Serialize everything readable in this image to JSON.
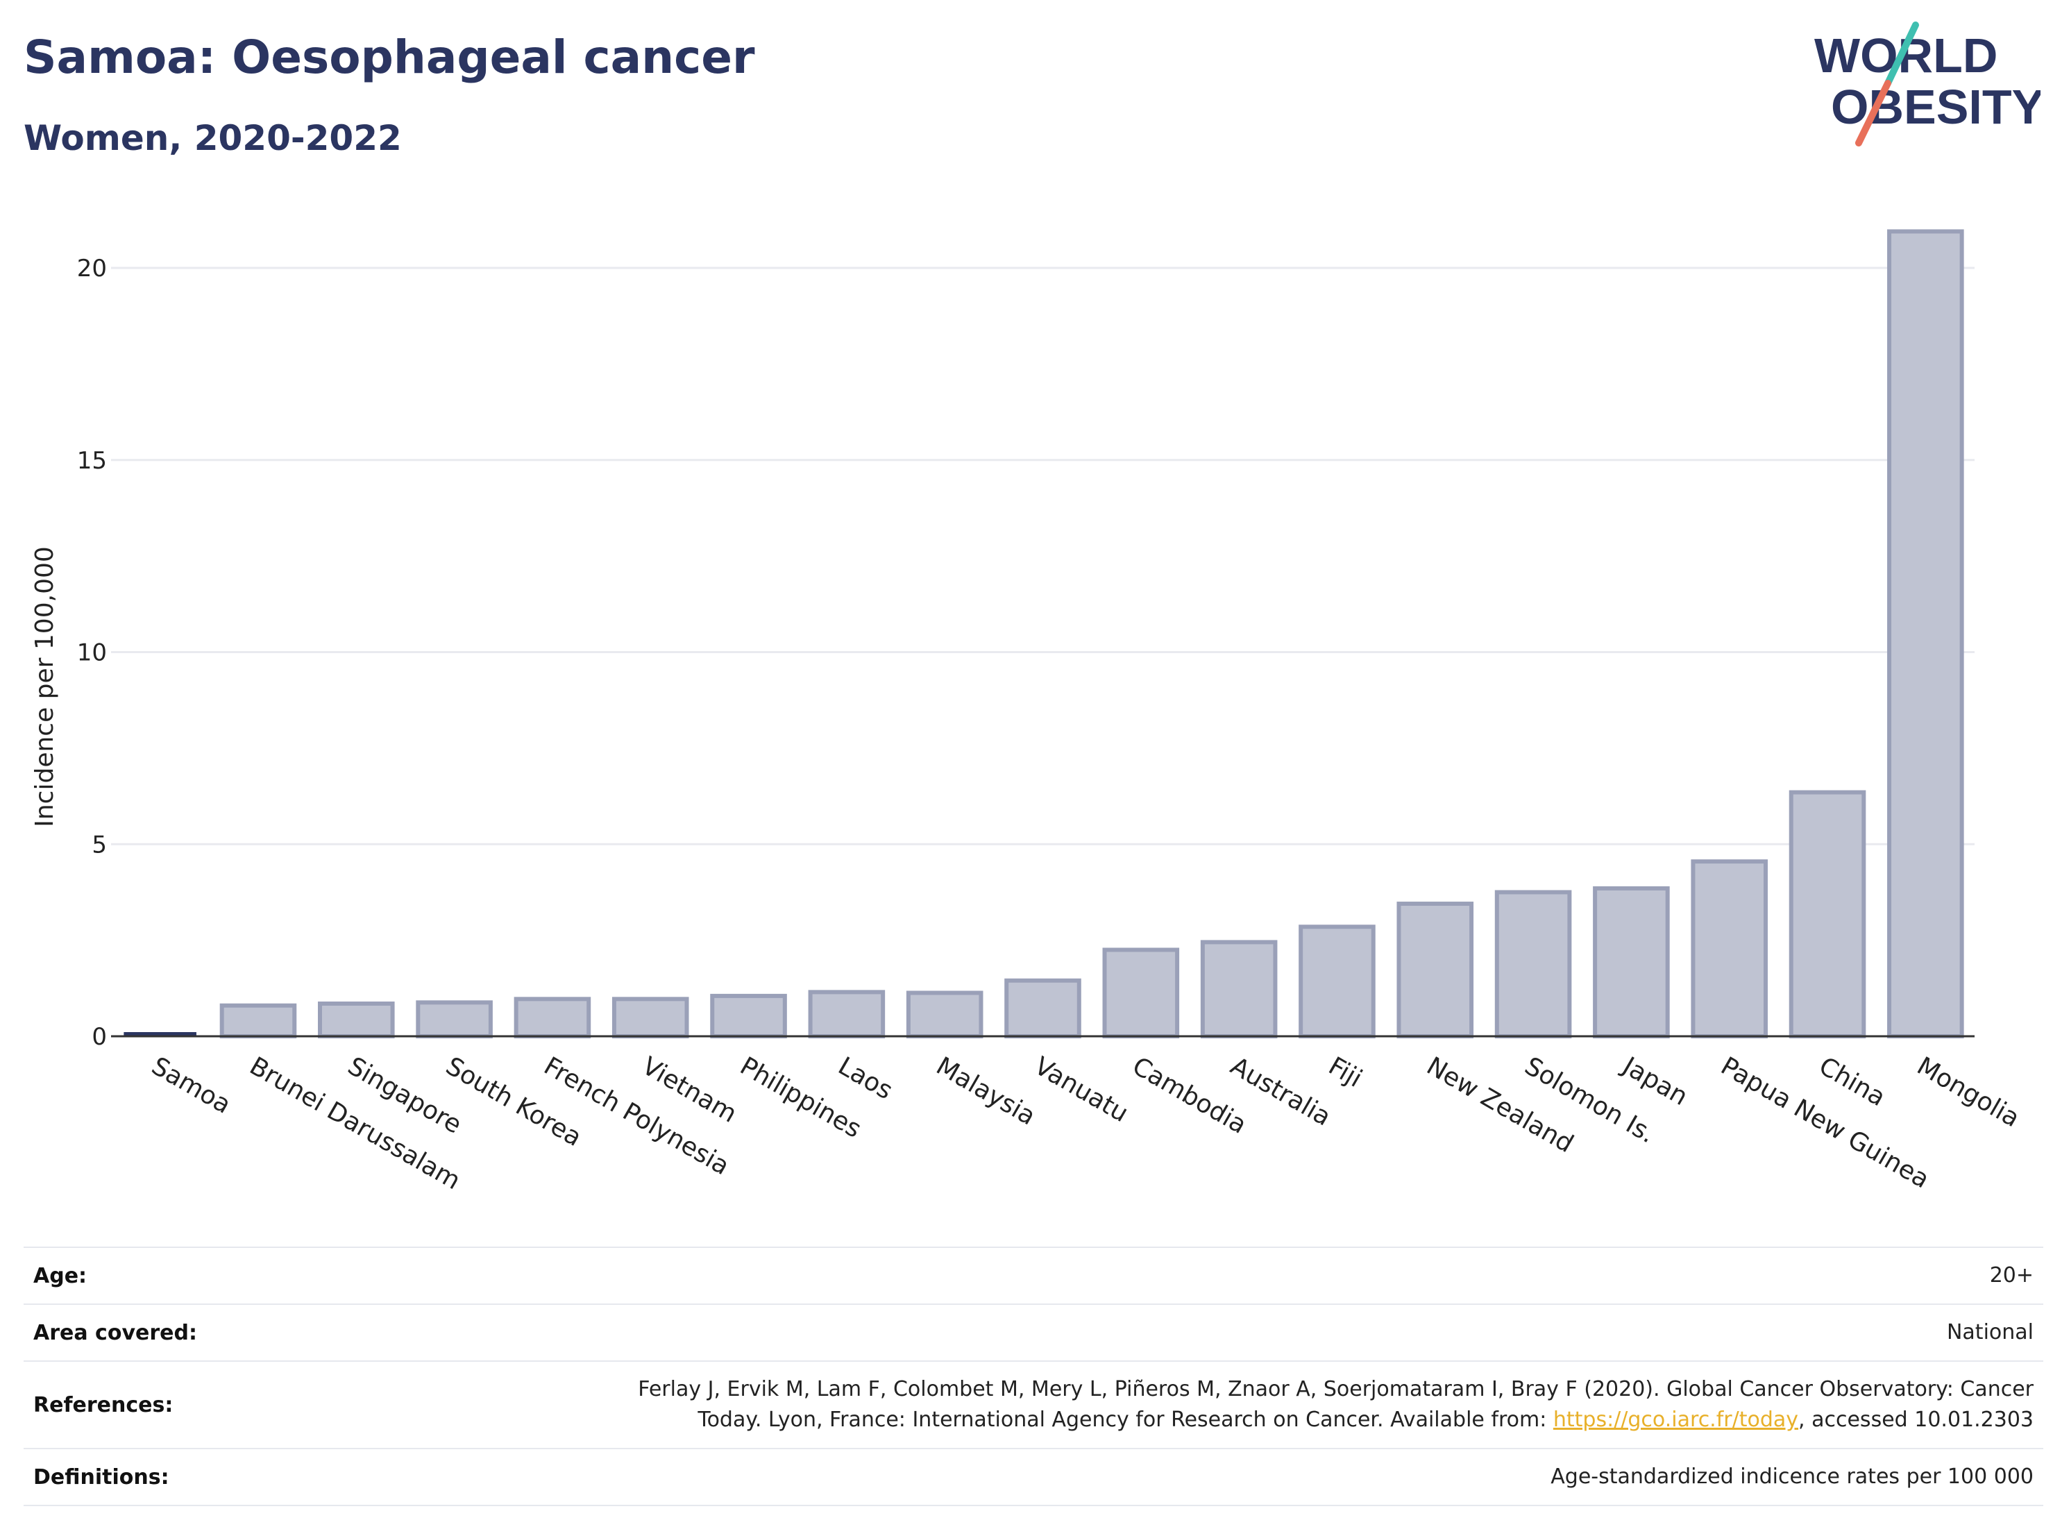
{
  "header": {
    "title": "Samoa: Oesophageal cancer",
    "subtitle": "Women, 2020-2022"
  },
  "logo": {
    "line1": "WORLD",
    "line2": "OBESITY",
    "text_color": "#2b3561",
    "slash_colors": [
      "#3fbfb0",
      "#e8705a"
    ]
  },
  "chart_data": {
    "type": "bar",
    "ylabel": "Incidence per 100,000",
    "ylim": [
      0,
      22
    ],
    "yticks": [
      0,
      5,
      10,
      15,
      20
    ],
    "grid": true,
    "categories": [
      "Samoa",
      "Brunei Darussalam",
      "Singapore",
      "South Korea",
      "French Polynesia",
      "Vietnam",
      "Philippines",
      "Laos",
      "Malaysia",
      "Vanuatu",
      "Cambodia",
      "Australia",
      "Fiji",
      "New Zealand",
      "Solomon Is.",
      "Japan",
      "Papua New Guinea",
      "China",
      "Mongolia"
    ],
    "values": [
      0.02,
      0.8,
      0.85,
      0.88,
      0.97,
      0.97,
      1.05,
      1.15,
      1.13,
      1.45,
      2.25,
      2.45,
      2.85,
      3.45,
      3.75,
      3.85,
      4.55,
      6.35,
      20.95
    ],
    "highlight": "Samoa",
    "colors": {
      "bar_fill": "#bfc3d2",
      "bar_stroke": "#9aa0b8",
      "highlight": "#2b3561",
      "grid": "#e9eaef",
      "baseline": "#333333"
    }
  },
  "info": {
    "age_label": "Age:",
    "age_value": "20+",
    "area_label": "Area covered:",
    "area_value": "National",
    "refs_label": "References:",
    "refs_line1": "Ferlay J, Ervik M, Lam F, Colombet M, Mery L, Piñeros M, Znaor A, Soerjomataram I, Bray F (2020). Global Cancer Observatory: Cancer",
    "refs_line2_pre": "Today. Lyon, France: International Agency for Research on Cancer. Available from: ",
    "refs_link": "https://gco.iarc.fr/today",
    "refs_line2_post": ", accessed 10.01.2303",
    "defs_label": "Definitions:",
    "defs_value": "Age-standardized indicence rates per 100 000"
  }
}
